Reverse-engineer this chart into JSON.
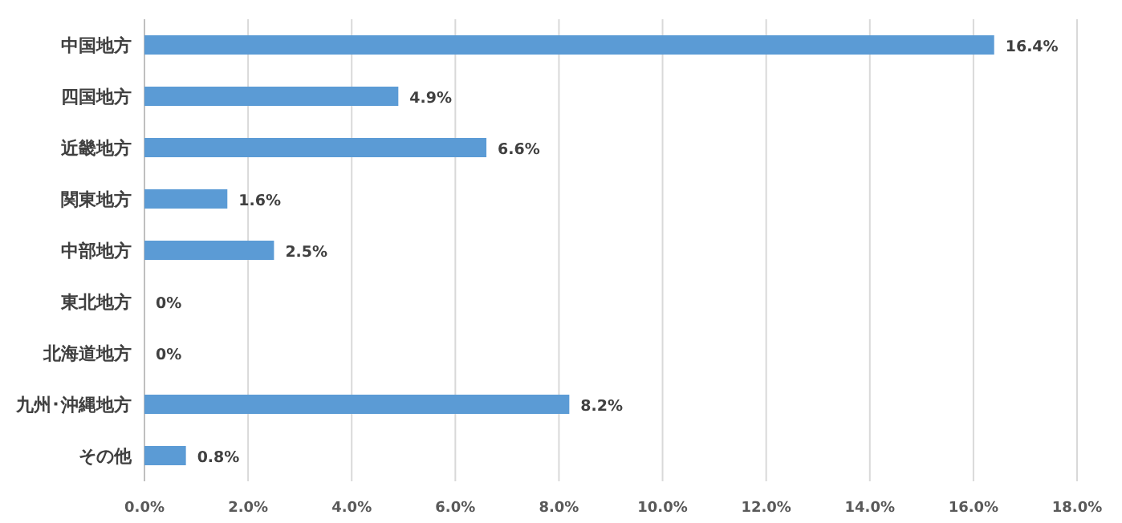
{
  "chart_data": {
    "type": "bar",
    "orientation": "horizontal",
    "categories": [
      "中国地方",
      "四国地方",
      "近畿地方",
      "関東地方",
      "中部地方",
      "東北地方",
      "北海道地方",
      "九州･沖縄地方",
      "その他"
    ],
    "values": [
      16.4,
      4.9,
      6.6,
      1.6,
      2.5,
      0,
      0,
      8.2,
      0.8
    ],
    "value_labels": [
      "16.4%",
      "4.9%",
      "6.6%",
      "1.6%",
      "2.5%",
      "0%",
      "0%",
      "8.2%",
      "0.8%"
    ],
    "color": "#5b9bd5",
    "xlim": [
      0,
      18
    ],
    "xticks": [
      {
        "value": 0,
        "label": "0.0%"
      },
      {
        "value": 2,
        "label": "2.0%"
      },
      {
        "value": 4,
        "label": "4.0%"
      },
      {
        "value": 6,
        "label": "6.0%"
      },
      {
        "value": 8,
        "label": "8.0%"
      },
      {
        "value": 10,
        "label": "10.0%"
      },
      {
        "value": 12,
        "label": "12.0%"
      },
      {
        "value": 14,
        "label": "14.0%"
      },
      {
        "value": 16,
        "label": "16.0%"
      },
      {
        "value": 18,
        "label": "18.0%"
      }
    ],
    "grid": "x"
  }
}
